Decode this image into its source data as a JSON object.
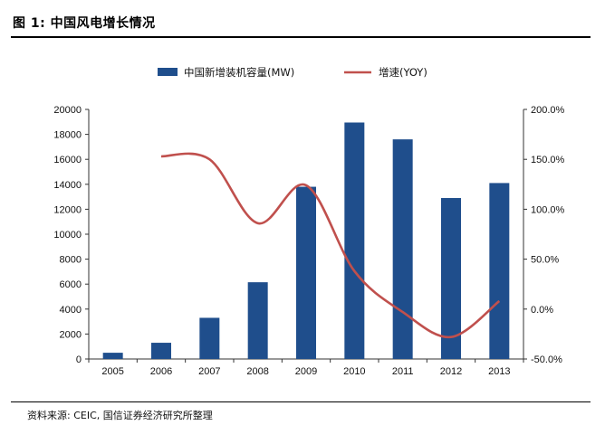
{
  "figure_title": "图 1: 中国风电增长情况",
  "source": "资料来源: CEIC, 国信证券经济研究所整理",
  "colors": {
    "bar": "#1f4e8c",
    "line": "#c0504d"
  },
  "chart_data": {
    "type": "bar",
    "categories": [
      "2005",
      "2006",
      "2007",
      "2008",
      "2009",
      "2010",
      "2011",
      "2012",
      "2013"
    ],
    "series": [
      {
        "name": "中国新增装机容量(MW)",
        "type": "bar",
        "axis": "left",
        "values": [
          500,
          1300,
          3300,
          6150,
          13800,
          18950,
          17600,
          12900,
          14100
        ]
      },
      {
        "name": "增速(YOY)",
        "type": "line",
        "axis": "right",
        "values": [
          null,
          153,
          150,
          86,
          124,
          38,
          -3,
          -28,
          8
        ]
      }
    ],
    "y_left": {
      "ylim": [
        0,
        20000
      ],
      "ticks": [
        "0",
        "2000",
        "4000",
        "6000",
        "8000",
        "10000",
        "12000",
        "14000",
        "16000",
        "18000",
        "20000"
      ]
    },
    "y_right": {
      "ylim": [
        -50,
        200
      ],
      "ticks": [
        "-50.0%",
        "0.0%",
        "50.0%",
        "100.0%",
        "150.0%",
        "200.0%"
      ]
    },
    "legend": "top-center",
    "grid": false
  }
}
